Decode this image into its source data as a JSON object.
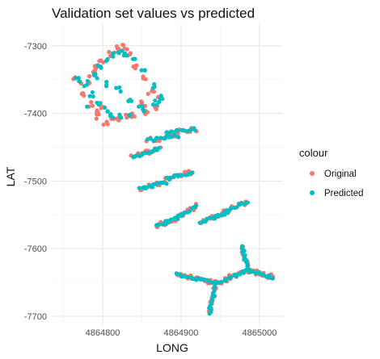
{
  "chart_data": {
    "type": "scatter",
    "title": "Validation set values vs predicted",
    "xlabel": "LONG",
    "ylabel": "LAT",
    "xlim": [
      4864735,
      4865030
    ],
    "ylim": [
      -7712,
      -7268
    ],
    "x_ticks": [
      4864800,
      4864900,
      4865000
    ],
    "x_tick_labels": [
      "4864800",
      "4864900",
      "4865000"
    ],
    "y_ticks": [
      -7300,
      -7400,
      -7500,
      -7600,
      -7700
    ],
    "y_tick_labels": [
      "-7300",
      "-7400",
      "-7500",
      "-7600",
      "-7700"
    ],
    "grid": true,
    "legend": {
      "title": "colour",
      "position": "right",
      "entries": [
        {
          "label": "Original",
          "color": "#F8766D"
        },
        {
          "label": "Predicted",
          "color": "#00BFC4"
        }
      ]
    },
    "series": [
      {
        "name": "Original",
        "color": "#F8766D",
        "clusters": [
          {
            "points": [
              [
                4864765,
                -7347
              ],
              [
                4864772,
                -7355
              ],
              [
                4864782,
                -7352
              ],
              [
                4864790,
                -7335
              ],
              [
                4864798,
                -7322
              ],
              [
                4864810,
                -7313
              ],
              [
                4864820,
                -7303
              ],
              [
                4864828,
                -7302
              ],
              [
                4864834,
                -7312
              ],
              [
                4864842,
                -7330
              ],
              [
                4864852,
                -7348
              ],
              [
                4864864,
                -7365
              ],
              [
                4864872,
                -7378
              ],
              [
                4864868,
                -7390
              ],
              [
                4864856,
                -7400
              ],
              [
                4864840,
                -7404
              ],
              [
                4864820,
                -7410
              ],
              [
                4864804,
                -7414
              ],
              [
                4864794,
                -7404
              ],
              [
                4864785,
                -7386
              ],
              [
                4864776,
                -7370
              ],
              [
                4864800,
                -7388
              ],
              [
                4864793,
                -7395
              ],
              [
                4864814,
                -7410
              ],
              [
                4864832,
                -7405
              ],
              [
                4864852,
                -7383
              ],
              [
                4864790,
                -7343
              ]
            ],
            "jitter": 3
          }
        ],
        "extra_points": [
          [
            4864790,
            -7330
          ],
          [
            4864815,
            -7310
          ],
          [
            4864831,
            -7305
          ],
          [
            4864854,
            -7389
          ],
          [
            4864858,
            -7371
          ],
          [
            4864783,
            -7345
          ]
        ]
      },
      {
        "name": "Predicted",
        "color": "#00BFC4",
        "clusters": [
          {
            "points": [
              [
                4864768,
                -7349
              ],
              [
                4864778,
                -7356
              ],
              [
                4864786,
                -7372
              ],
              [
                4864795,
                -7387
              ],
              [
                4864805,
                -7394
              ],
              [
                4864812,
                -7402
              ],
              [
                4864822,
                -7405
              ],
              [
                4864836,
                -7400
              ],
              [
                4864852,
                -7393
              ],
              [
                4864866,
                -7384
              ],
              [
                4864874,
                -7375
              ],
              [
                4864866,
                -7360
              ],
              [
                4864852,
                -7338
              ],
              [
                4864840,
                -7323
              ],
              [
                4864830,
                -7313
              ],
              [
                4864822,
                -7308
              ],
              [
                4864812,
                -7313
              ],
              [
                4864804,
                -7320
              ],
              [
                4864796,
                -7331
              ],
              [
                4864788,
                -7341
              ],
              [
                4864805,
                -7357
              ],
              [
                4864820,
                -7365
              ],
              [
                4864835,
                -7378
              ]
            ],
            "jitter": 3
          }
        ],
        "extra_points": [
          [
            4864780,
            -7390
          ],
          [
            4864793,
            -7348
          ],
          [
            4864846,
            -7390
          ],
          [
            4864872,
            -7383
          ]
        ]
      }
    ],
    "segments": [
      {
        "from": [
          4864838,
          -7465
        ],
        "to": [
          4864872,
          -7452
        ],
        "n": 14
      },
      {
        "from": [
          4864858,
          -7440
        ],
        "to": [
          4864895,
          -7433
        ],
        "n": 12
      },
      {
        "from": [
          4864882,
          -7428
        ],
        "to": [
          4864918,
          -7423
        ],
        "n": 12
      },
      {
        "from": [
          4864848,
          -7512
        ],
        "to": [
          4864880,
          -7502
        ],
        "n": 14
      },
      {
        "from": [
          4864882,
          -7497
        ],
        "to": [
          4864913,
          -7487
        ],
        "n": 12
      },
      {
        "from": [
          4864868,
          -7567
        ],
        "to": [
          4864895,
          -7555
        ],
        "n": 12
      },
      {
        "from": [
          4864893,
          -7555
        ],
        "to": [
          4864920,
          -7537
        ],
        "n": 12
      },
      {
        "from": [
          4864925,
          -7560
        ],
        "to": [
          4864958,
          -7548
        ],
        "n": 14
      },
      {
        "from": [
          4864955,
          -7545
        ],
        "to": [
          4864985,
          -7530
        ],
        "n": 12
      },
      {
        "from": [
          4864895,
          -7638
        ],
        "to": [
          4864945,
          -7651
        ],
        "n": 20
      },
      {
        "from": [
          4864945,
          -7651
        ],
        "to": [
          4864985,
          -7632
        ],
        "n": 16
      },
      {
        "from": [
          4864985,
          -7632
        ],
        "to": [
          4865018,
          -7643
        ],
        "n": 14
      },
      {
        "from": [
          4864985,
          -7632
        ],
        "to": [
          4864978,
          -7595
        ],
        "n": 14
      },
      {
        "from": [
          4864945,
          -7651
        ],
        "to": [
          4864936,
          -7695
        ],
        "n": 16
      }
    ]
  }
}
